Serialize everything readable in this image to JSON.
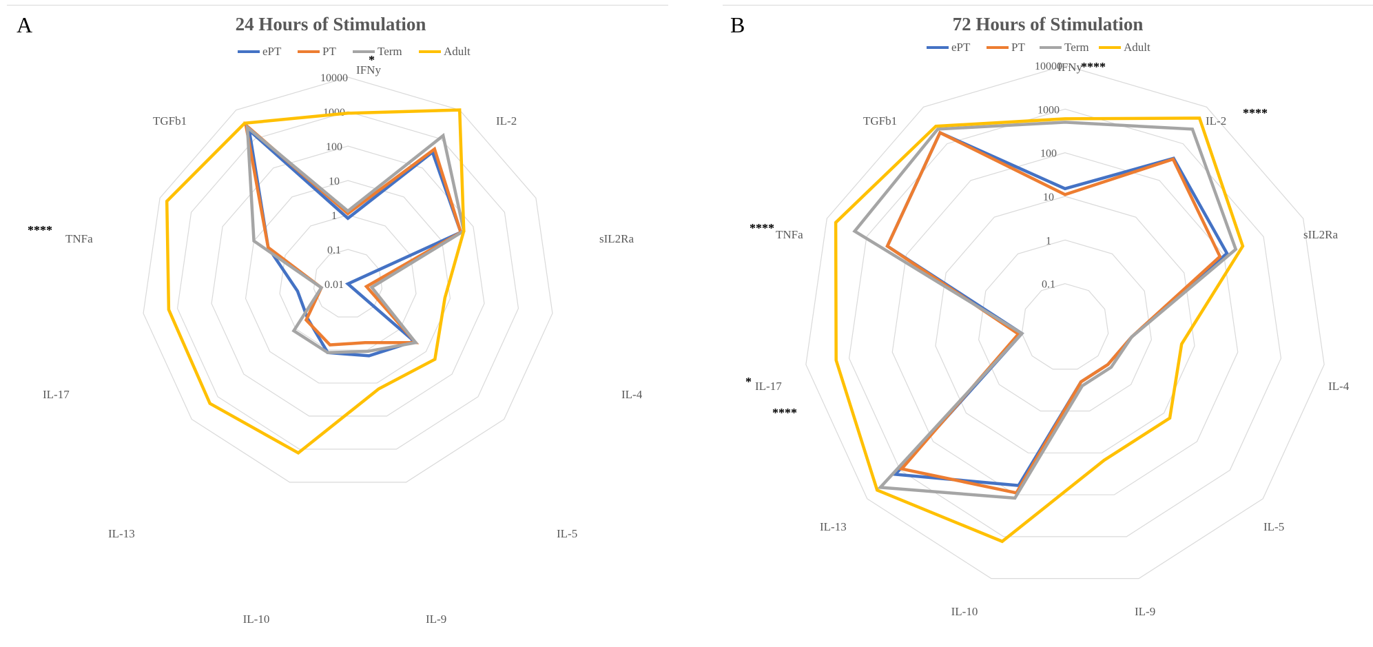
{
  "chart_data": [
    {
      "type": "radar",
      "panel_label": "A",
      "title": "24 Hours of Stimulation",
      "scale": "log",
      "rlim": [
        0.01,
        10000
      ],
      "ticks": [
        "0.01",
        "0.1",
        "1",
        "10",
        "100",
        "1000",
        "10000"
      ],
      "grid": true,
      "legend_position": "top",
      "axes": [
        "IFNy",
        "IL-2",
        "sIL2Ra",
        "IL-4",
        "IL-5",
        "IL-9",
        "IL-10",
        "IL-13",
        "IL-17",
        "TNFa",
        "TGFb1"
      ],
      "significance": {
        "IFNy": "*",
        "TNFa": "****"
      },
      "series": [
        {
          "name": "ePT",
          "color": "#4472C4",
          "values": [
            0.8,
            350,
            40,
            0.01,
            3.5,
            1.5,
            1.2,
            0.35,
            0.3,
            3.5,
            2000
          ]
        },
        {
          "name": "PT",
          "color": "#ED7D31",
          "values": [
            1.1,
            450,
            40,
            0.035,
            4.0,
            0.6,
            0.7,
            0.4,
            0.06,
            3.5,
            3000
          ]
        },
        {
          "name": "Term",
          "color": "#A5A5A5",
          "values": [
            1.3,
            1300,
            50,
            0.05,
            4.0,
            1.1,
            1.2,
            1.2,
            0.06,
            10,
            2500
          ]
        },
        {
          "name": "Adult",
          "color": "#FFC000",
          "values": [
            900,
            10000,
            50,
            7,
            22,
            15,
            1300,
            2000,
            1800,
            6000,
            3500
          ]
        }
      ]
    },
    {
      "type": "radar",
      "panel_label": "B",
      "title": "72 Hours of Stimulation",
      "scale": "log",
      "rlim": [
        0.01,
        10000
      ],
      "ticks": [
        "0.1",
        "1",
        "10",
        "100",
        "1000",
        "10000"
      ],
      "grid": true,
      "legend_position": "top",
      "axes": [
        "IFNy",
        "IL-2",
        "sIL2Ra",
        "IL-4",
        "IL-5",
        "IL-9",
        "IL-10",
        "IL-13",
        "IL-17",
        "TNFa",
        "TGFb1"
      ],
      "significance": {
        "IFNy": "****",
        "IL-2": "****",
        "IL-17": "*",
        "TNFa": "****",
        "IL-13": "****"
      },
      "series": [
        {
          "name": "ePT",
          "color": "#4472C4",
          "values": [
            15,
            400,
            120,
            0.35,
            0.2,
            0.2,
            60,
            1400,
            0.1,
            300,
            2000
          ]
        },
        {
          "name": "PT",
          "color": "#ED7D31",
          "values": [
            11,
            380,
            80,
            0.35,
            0.2,
            0.2,
            90,
            900,
            0.12,
            300,
            2000
          ]
        },
        {
          "name": "Term",
          "color": "#A5A5A5",
          "values": [
            500,
            2500,
            200,
            0.35,
            0.25,
            0.25,
            120,
            4000,
            0.1,
            2000,
            2500
          ]
        },
        {
          "name": "Adult",
          "color": "#FFC000",
          "values": [
            600,
            5000,
            300,
            5,
            15,
            15,
            1300,
            5000,
            2000,
            6000,
            3000
          ]
        }
      ]
    }
  ]
}
